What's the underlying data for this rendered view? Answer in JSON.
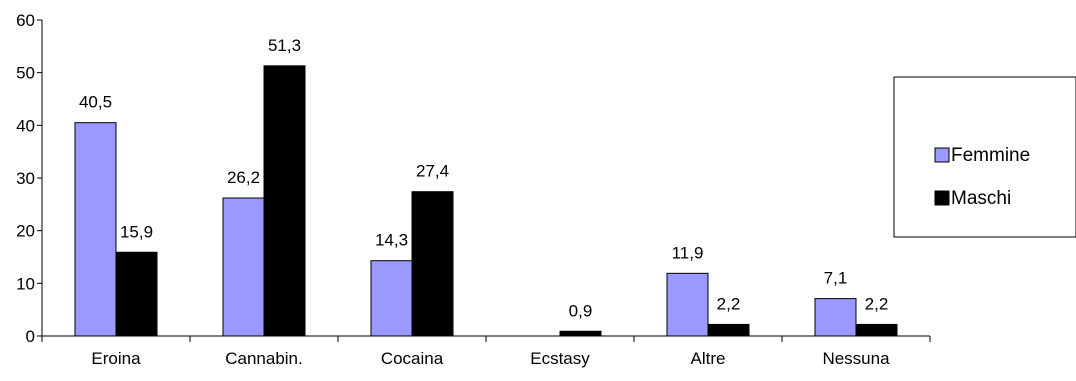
{
  "chart_data": {
    "type": "bar",
    "title": "",
    "xlabel": "",
    "ylabel": "",
    "categories": [
      "Eroina",
      "Cannabin.",
      "Cocaina",
      "Ecstasy",
      "Altre",
      "Nessuna"
    ],
    "series": [
      {
        "name": "Femmine",
        "values": [
          40.5,
          26.2,
          14.3,
          null,
          11.9,
          7.1
        ],
        "labels": [
          "40,5",
          "26,2",
          "14,3",
          "",
          "11,9",
          "7,1"
        ],
        "color": "#9999ff"
      },
      {
        "name": "Maschi",
        "values": [
          15.9,
          51.3,
          27.4,
          0.9,
          2.2,
          2.2
        ],
        "labels": [
          "15,9",
          "51,3",
          "27,4",
          "0,9",
          "2,2",
          "2,2"
        ],
        "color": "#000000"
      }
    ],
    "ylim": [
      0,
      60
    ],
    "yticks": [
      0,
      10,
      20,
      30,
      40,
      50,
      60
    ],
    "grid": false,
    "legend_position": "right"
  }
}
